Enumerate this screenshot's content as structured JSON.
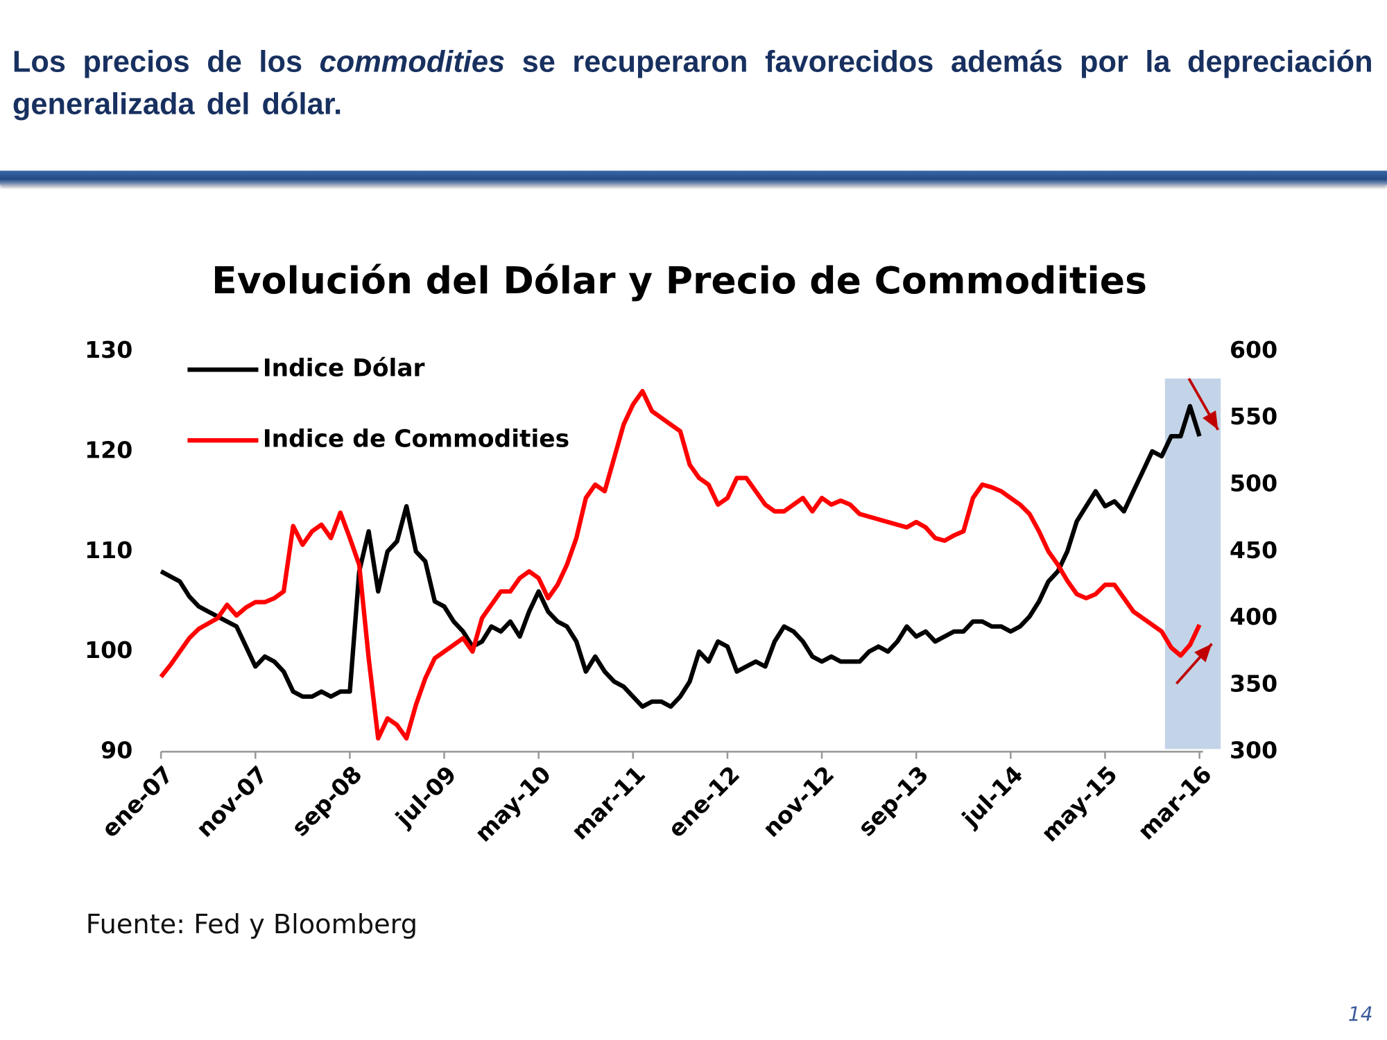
{
  "header": {
    "text_before": "Los precios de los",
    "text_italic": "commodities",
    "text_after": "se recuperaron favorecidos además por la depreciación generalizada del dólar."
  },
  "chart_data": {
    "type": "line",
    "title": "Evolución del Dólar y Precio de Commodities",
    "categories": [
      "ene-07",
      null,
      null,
      null,
      null,
      null,
      null,
      null,
      null,
      null,
      "nov-07",
      null,
      null,
      null,
      null,
      null,
      null,
      null,
      null,
      null,
      "sep-08",
      null,
      null,
      null,
      null,
      null,
      null,
      null,
      null,
      null,
      "jul-09",
      null,
      null,
      null,
      null,
      null,
      null,
      null,
      null,
      null,
      "may-10",
      null,
      null,
      null,
      null,
      null,
      null,
      null,
      null,
      null,
      "mar-11",
      null,
      null,
      null,
      null,
      null,
      null,
      null,
      null,
      null,
      "ene-12",
      null,
      null,
      null,
      null,
      null,
      null,
      null,
      null,
      null,
      "nov-12",
      null,
      null,
      null,
      null,
      null,
      null,
      null,
      null,
      null,
      "sep-13",
      null,
      null,
      null,
      null,
      null,
      null,
      null,
      null,
      null,
      "jul-14",
      null,
      null,
      null,
      null,
      null,
      null,
      null,
      null,
      null,
      "may-15",
      null,
      null,
      null,
      null,
      null,
      null,
      null,
      null,
      null,
      "mar-16"
    ],
    "series": [
      {
        "name": "Indice Dólar",
        "color": "#000000",
        "axis": "y",
        "values": [
          108,
          107.5,
          107,
          105.5,
          104.5,
          104,
          103.5,
          103,
          102.5,
          100.5,
          98.5,
          99.5,
          99,
          98,
          96,
          95.5,
          95.5,
          96,
          95.5,
          96,
          96,
          108,
          112,
          106,
          110,
          111,
          114.5,
          110,
          109,
          105,
          104.5,
          103,
          102,
          100.5,
          101,
          102.5,
          102,
          103,
          101.5,
          104,
          106,
          104,
          103,
          102.5,
          101,
          98,
          99.5,
          98,
          97,
          96.5,
          95.5,
          94.5,
          95,
          95,
          94.5,
          95.5,
          97,
          100,
          99,
          101,
          100.5,
          98,
          98.5,
          99,
          98.5,
          101,
          102.5,
          102,
          101,
          99.5,
          99,
          99.5,
          99,
          99,
          99,
          100,
          100.5,
          100,
          101,
          102.5,
          101.5,
          102,
          101,
          101.5,
          102,
          102,
          103,
          103,
          102.5,
          102.5,
          102,
          102.5,
          103.5,
          105,
          107,
          108,
          110,
          113,
          114.5,
          116,
          114.5,
          115,
          114,
          116,
          118,
          120,
          119.5,
          121.5,
          121.5,
          124.5,
          121.5
        ]
      },
      {
        "name": "Indice de Commodities",
        "color": "#ff0000",
        "axis": "y2",
        "values": [
          356,
          365,
          375,
          385,
          392,
          396,
          400,
          410,
          402,
          408,
          412,
          412,
          415,
          420,
          469,
          455,
          465,
          470,
          460,
          479,
          460,
          440,
          370,
          310,
          325,
          320,
          310,
          335,
          355,
          370,
          375,
          380,
          385,
          375,
          400,
          410,
          420,
          420,
          430,
          435,
          430,
          415,
          425,
          440,
          460,
          490,
          500,
          495,
          520,
          545,
          560,
          570,
          555,
          550,
          545,
          540,
          515,
          505,
          500,
          485,
          490,
          505,
          505,
          495,
          485,
          480,
          480,
          485,
          490,
          480,
          490,
          485,
          488,
          485,
          478,
          476,
          474,
          472,
          470,
          468,
          472,
          468,
          460,
          458,
          462,
          465,
          490,
          500,
          498,
          495,
          490,
          485,
          478,
          465,
          450,
          440,
          428,
          418,
          415,
          418,
          425,
          425,
          415,
          405,
          400,
          395,
          390,
          378,
          372,
          380,
          395
        ]
      }
    ],
    "ylim": [
      90,
      130
    ],
    "yticks": [
      90,
      100,
      110,
      120,
      130
    ],
    "y2lim": [
      300,
      600
    ],
    "y2ticks": [
      300,
      350,
      400,
      450,
      500,
      550,
      600
    ],
    "legend": "upper left"
  },
  "source": "Fuente: Fed y Bloomberg",
  "page_number": "14"
}
